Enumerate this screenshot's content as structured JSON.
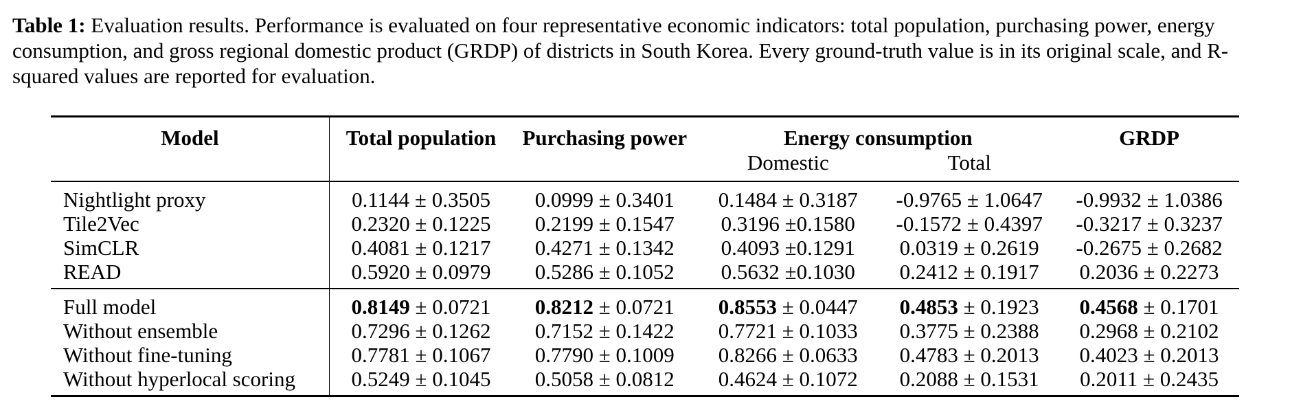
{
  "caption": {
    "label": "Table 1:",
    "text": " Evaluation results. Performance is evaluated on four representative economic indicators: total population, purchasing power, energy consumption, and gross regional domestic product (GRDP) of districts in South Korea. Every ground-truth value is in its original scale, and R-squared values are reported for evaluation."
  },
  "header": {
    "model": "Model",
    "total_population": "Total population",
    "purchasing_power": "Purchasing power",
    "energy_consumption": "Energy consumption",
    "grdp": "GRDP",
    "energy_domestic": "Domestic",
    "energy_total": "Total"
  },
  "group1": [
    {
      "model": "Nightlight proxy",
      "c1": "0.1144 ± 0.3505",
      "c2": "0.0999 ± 0.3401",
      "c3": "0.1484 ± 0.3187",
      "c4": "-0.9765 ± 1.0647",
      "c5": "-0.9932 ± 1.0386"
    },
    {
      "model": "Tile2Vec",
      "c1": "0.2320 ± 0.1225",
      "c2": "0.2199 ± 0.1547",
      "c3": "0.3196 ±0.1580",
      "c4": "-0.1572 ± 0.4397",
      "c5": "-0.3217 ± 0.3237"
    },
    {
      "model": "SimCLR",
      "c1": "0.4081 ± 0.1217",
      "c2": "0.4271 ± 0.1342",
      "c3": "0.4093 ±0.1291",
      "c4": "0.0319 ± 0.2619",
      "c5": "-0.2675 ± 0.2682"
    },
    {
      "model": "READ",
      "c1": "0.5920 ± 0.0979",
      "c2": "0.5286 ± 0.1052",
      "c3": "0.5632 ±0.1030",
      "c4": "0.2412 ± 0.1917",
      "c5": "0.2036 ± 0.2273"
    }
  ],
  "full_model": {
    "model": "Full model",
    "c1_bold": "0.8149",
    "c1_rest": " ± 0.0721",
    "c2_bold": "0.8212",
    "c2_rest": " ± 0.0721",
    "c3_bold": "0.8553",
    "c3_rest": " ± 0.0447",
    "c4_bold": "0.4853",
    "c4_rest": " ± 0.1923",
    "c5_bold": "0.4568",
    "c5_rest": " ± 0.1701"
  },
  "group2": [
    {
      "model": "Without ensemble",
      "c1": "0.7296 ± 0.1262",
      "c2": "0.7152 ± 0.1422",
      "c3": "0.7721 ± 0.1033",
      "c4": "0.3775 ± 0.2388",
      "c5": "0.2968 ± 0.2102"
    },
    {
      "model": "Without fine-tuning",
      "c1": "0.7781 ± 0.1067",
      "c2": "0.7790 ± 0.1009",
      "c3": "0.8266 ± 0.0633",
      "c4": "0.4783 ± 0.2013",
      "c5": "0.4023 ± 0.2013"
    },
    {
      "model": "Without hyperlocal scoring",
      "c1": "0.5249 ± 0.1045",
      "c2": "0.5058 ± 0.0812",
      "c3": "0.4624 ± 0.1072",
      "c4": "0.2088 ± 0.1531",
      "c5": "0.2011 ± 0.2435"
    }
  ]
}
